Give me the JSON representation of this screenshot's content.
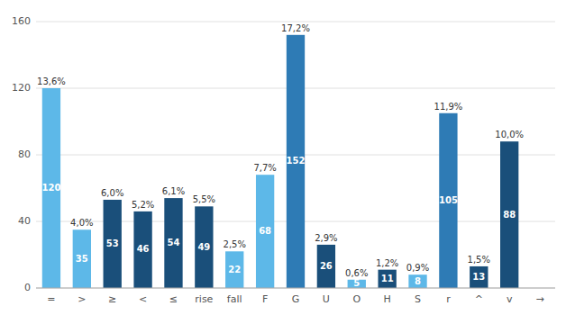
{
  "chart_data": {
    "type": "bar",
    "categories": [
      "=",
      ">",
      "≥",
      "<",
      "≤",
      "rise",
      "fall",
      "F",
      "G",
      "U",
      "O",
      "H",
      "S",
      "r",
      "^",
      "v",
      "→"
    ],
    "values": [
      120,
      35,
      53,
      46,
      54,
      49,
      22,
      68,
      152,
      26,
      5,
      11,
      8,
      105,
      13,
      88,
      0
    ],
    "colors": [
      "#5DB8E8",
      "#5DB8E8",
      "#1A4F7A",
      "#1A4F7A",
      "#1A4F7A",
      "#1A4F7A",
      "#5DB8E8",
      "#5DB8E8",
      "#2E7BB5",
      "#1A4F7A",
      "#5DB8E8",
      "#1A4F7A",
      "#5DB8E8",
      "#2E7BB5",
      "#1A4F7A",
      "#1A4F7A",
      "#1A4F7A"
    ],
    "shares": [
      {
        "value": 13.6,
        "label": "13,6%"
      },
      {
        "value": 4.0,
        "label": "4,0%"
      },
      {
        "value": 6.0,
        "label": "6,0%"
      },
      {
        "value": 5.2,
        "label": "5,2%"
      },
      {
        "value": 6.1,
        "label": "6,1%"
      },
      {
        "value": 5.5,
        "label": "5,5%"
      },
      {
        "value": 2.5,
        "label": "2,5%"
      },
      {
        "value": 7.7,
        "label": "7,7%"
      },
      {
        "value": 17.2,
        "label": "17,2%"
      },
      {
        "value": 2.9,
        "label": "2,9%"
      },
      {
        "value": 0.6,
        "label": "0,6%"
      },
      {
        "value": 1.2,
        "label": "1,2%"
      },
      {
        "value": 0.9,
        "label": "0,9%"
      },
      {
        "value": 11.9,
        "label": "11,9%"
      },
      {
        "value": 1.5,
        "label": "1,5%"
      },
      {
        "value": 10.0,
        "label": "10,0%"
      },
      null
    ],
    "ylim": [
      0,
      160
    ],
    "yticks": [
      0,
      40,
      80,
      120,
      160
    ],
    "grid": true,
    "data_labels": true
  }
}
